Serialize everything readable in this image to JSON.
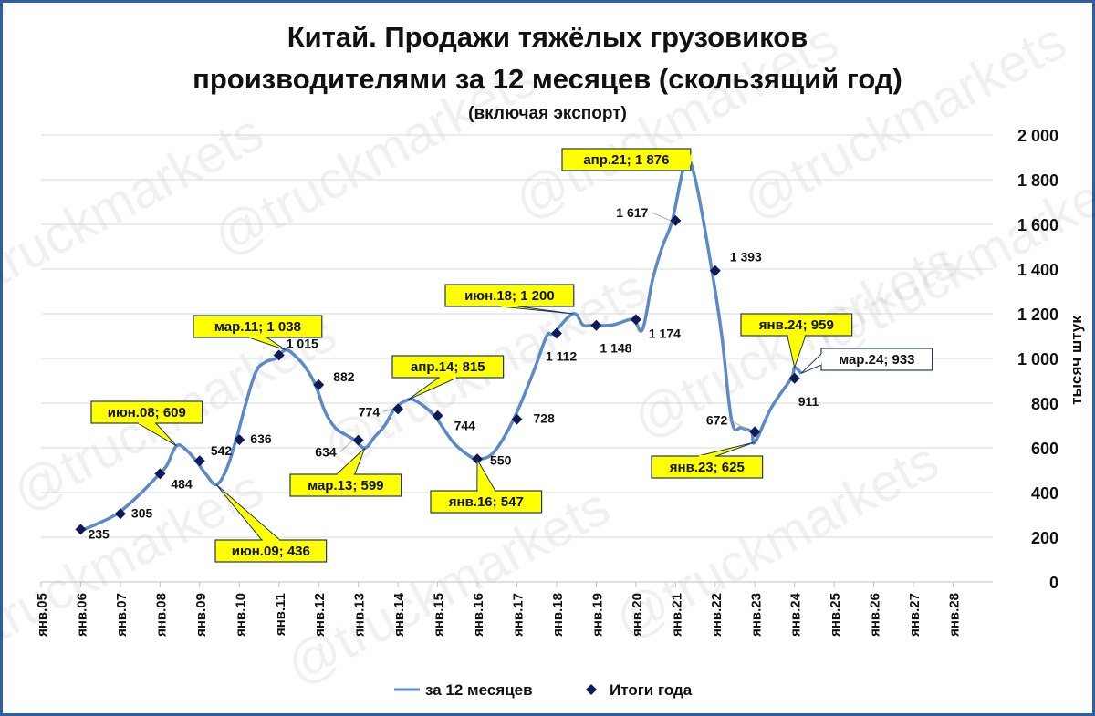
{
  "chart_data": {
    "type": "line",
    "title_line1": "Китай. Продажи тяжёлых грузовиков",
    "title_line2": "производителями за 12 месяцев (скользящий год)",
    "subtitle": "(включая экспорт)",
    "ylabel": "тысяч штук",
    "ylim": [
      0,
      2000
    ],
    "yticks": [
      0,
      200,
      400,
      600,
      800,
      1000,
      1200,
      1400,
      1600,
      1800,
      2000
    ],
    "ytick_labels": [
      "0",
      "200",
      "400",
      "600",
      "800",
      "1 000",
      "1 200",
      "1 400",
      "1 600",
      "1 800",
      "2 000"
    ],
    "x_start": "2005-01",
    "x_end": "2028-12",
    "xtick_labels": [
      "янв.05",
      "янв.06",
      "янв.07",
      "янв.08",
      "янв.09",
      "янв.10",
      "янв.11",
      "янв.12",
      "янв.13",
      "янв.14",
      "янв.15",
      "янв.16",
      "янв.17",
      "янв.18",
      "янв.19",
      "янв.20",
      "янв.21",
      "янв.22",
      "янв.23",
      "янв.24",
      "янв.25",
      "янв.26",
      "янв.27",
      "янв.28"
    ],
    "legend": {
      "position": "bottom",
      "line_label": "за 12 месяцев",
      "marker_label": "Итоги года"
    },
    "colors": {
      "line": "#5b8ac6",
      "marker": "#0d1a57",
      "callout_fill": "#ffff00",
      "grid": "#d9d9d9",
      "frame": "#2e5fa3"
    },
    "series": [
      {
        "name": "за 12 месяцев",
        "points": [
          [
            "2006-01",
            230
          ],
          [
            "2006-06",
            260
          ],
          [
            "2006-12",
            305
          ],
          [
            "2007-06",
            380
          ],
          [
            "2007-12",
            470
          ],
          [
            "2008-03",
            520
          ],
          [
            "2008-06",
            609
          ],
          [
            "2008-09",
            590
          ],
          [
            "2008-12",
            540
          ],
          [
            "2009-03",
            480
          ],
          [
            "2009-06",
            436
          ],
          [
            "2009-09",
            500
          ],
          [
            "2009-12",
            636
          ],
          [
            "2010-03",
            800
          ],
          [
            "2010-06",
            940
          ],
          [
            "2010-09",
            985
          ],
          [
            "2010-12",
            1000
          ],
          [
            "2011-03",
            1038
          ],
          [
            "2011-06",
            1010
          ],
          [
            "2011-09",
            960
          ],
          [
            "2011-12",
            882
          ],
          [
            "2012-03",
            760
          ],
          [
            "2012-06",
            690
          ],
          [
            "2012-09",
            660
          ],
          [
            "2012-12",
            634
          ],
          [
            "2013-03",
            599
          ],
          [
            "2013-06",
            650
          ],
          [
            "2013-09",
            700
          ],
          [
            "2013-12",
            774
          ],
          [
            "2014-04",
            815
          ],
          [
            "2014-07",
            805
          ],
          [
            "2014-12",
            744
          ],
          [
            "2015-06",
            620
          ],
          [
            "2015-12",
            550
          ],
          [
            "2016-01",
            547
          ],
          [
            "2016-06",
            580
          ],
          [
            "2016-12",
            728
          ],
          [
            "2017-06",
            940
          ],
          [
            "2017-10",
            1100
          ],
          [
            "2017-12",
            1112
          ],
          [
            "2018-06",
            1200
          ],
          [
            "2018-09",
            1150
          ],
          [
            "2018-12",
            1148
          ],
          [
            "2019-06",
            1150
          ],
          [
            "2019-12",
            1174
          ],
          [
            "2020-03",
            1130
          ],
          [
            "2020-06",
            1350
          ],
          [
            "2020-09",
            1500
          ],
          [
            "2020-12",
            1617
          ],
          [
            "2021-04",
            1876
          ],
          [
            "2021-07",
            1800
          ],
          [
            "2021-12",
            1393
          ],
          [
            "2022-03",
            1100
          ],
          [
            "2022-06",
            720
          ],
          [
            "2022-09",
            690
          ],
          [
            "2022-12",
            672
          ],
          [
            "2023-01",
            625
          ],
          [
            "2023-06",
            780
          ],
          [
            "2023-12",
            911
          ],
          [
            "2024-01",
            959
          ],
          [
            "2024-03",
            933
          ]
        ]
      },
      {
        "name": "Итоги года",
        "points": [
          [
            "2006-01",
            235
          ],
          [
            "2007-01",
            305
          ],
          [
            "2008-01",
            484
          ],
          [
            "2009-01",
            542
          ],
          [
            "2010-01",
            636
          ],
          [
            "2011-01",
            1015
          ],
          [
            "2012-01",
            882
          ],
          [
            "2013-01",
            634
          ],
          [
            "2014-01",
            774
          ],
          [
            "2015-01",
            744
          ],
          [
            "2016-01",
            550
          ],
          [
            "2017-01",
            728
          ],
          [
            "2018-01",
            1112
          ],
          [
            "2019-01",
            1148
          ],
          [
            "2020-01",
            1174
          ],
          [
            "2021-01",
            1617
          ],
          [
            "2022-01",
            1393
          ],
          [
            "2023-01",
            672
          ],
          [
            "2024-01",
            911
          ]
        ]
      }
    ],
    "marker_labels": [
      "235",
      "305",
      "484",
      "542",
      "636",
      "1 015",
      "882",
      "634",
      "774",
      "744",
      "550",
      "728",
      "1 112",
      "1 148",
      "1 174",
      "1 617",
      "1 393",
      "672",
      "911"
    ],
    "callouts": [
      {
        "text": "июн.08; 609",
        "x": "2008-06",
        "y": 609,
        "anchor": "top"
      },
      {
        "text": "июн.09; 436",
        "x": "2009-06",
        "y": 436,
        "anchor": "bottom"
      },
      {
        "text": "мар.11; 1 038",
        "x": "2011-03",
        "y": 1038,
        "anchor": "top"
      },
      {
        "text": "мар.13; 599",
        "x": "2013-03",
        "y": 599,
        "anchor": "bottom"
      },
      {
        "text": "апр.14; 815",
        "x": "2014-04",
        "y": 815,
        "anchor": "top"
      },
      {
        "text": "янв.16; 547",
        "x": "2016-01",
        "y": 547,
        "anchor": "bottom"
      },
      {
        "text": "июн.18; 1 200",
        "x": "2018-06",
        "y": 1200,
        "anchor": "top"
      },
      {
        "text": "апр.21; 1 876",
        "x": "2021-04",
        "y": 1876,
        "anchor": "left"
      },
      {
        "text": "янв.23; 625",
        "x": "2023-01",
        "y": 625,
        "anchor": "bottom"
      },
      {
        "text": "янв.24; 959",
        "x": "2024-01",
        "y": 959,
        "anchor": "top"
      },
      {
        "text": "мар.24; 933",
        "x": "2024-03",
        "y": 933,
        "anchor": "right",
        "white": true
      }
    ],
    "watermark": "@truckmarkets"
  }
}
